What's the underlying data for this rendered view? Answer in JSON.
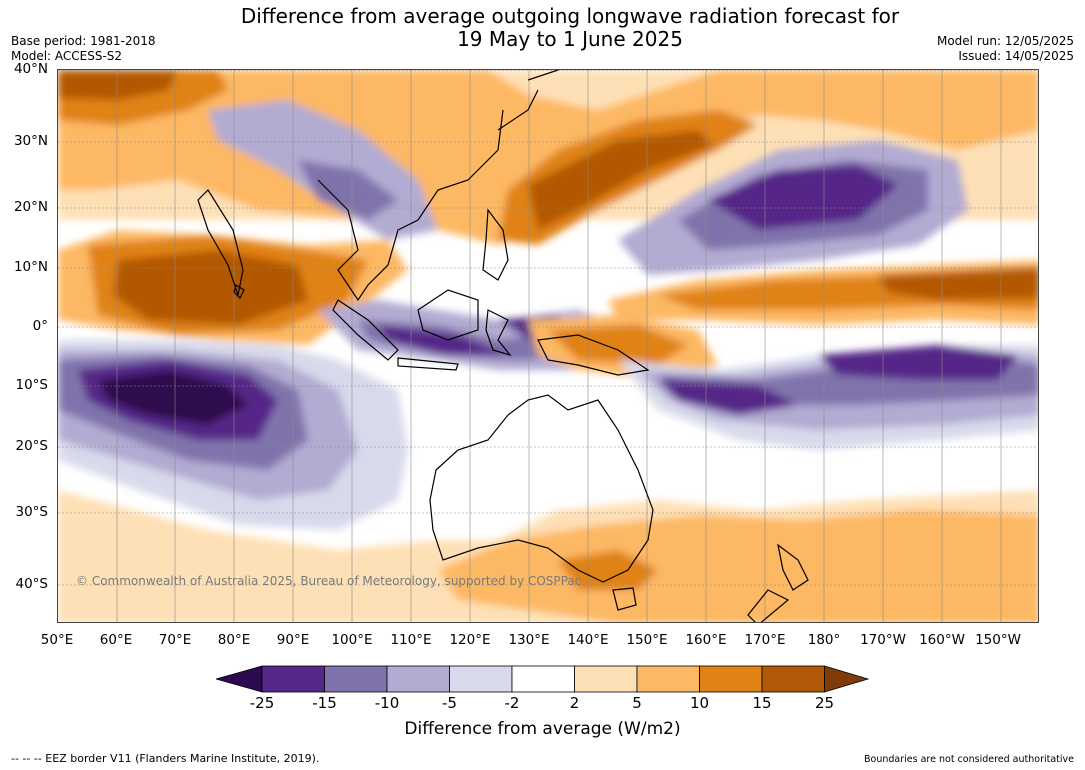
{
  "title": {
    "line1": "Difference from average outgoing longwave radiation forecast for",
    "line2": "19 May to 1 June 2025"
  },
  "meta_left": {
    "base_period": "Base period: 1981-2018",
    "model": "Model: ACCESS-S2"
  },
  "meta_right": {
    "model_run": "Model run: 12/05/2025",
    "issued": "Issued: 14/05/2025"
  },
  "map": {
    "lat_labels": [
      "40°N",
      "30°N",
      "20°N",
      "10°N",
      "0°",
      "10°S",
      "20°S",
      "30°S",
      "40°S"
    ],
    "lon_labels": [
      "50°E",
      "60°E",
      "70°E",
      "80°E",
      "90°E",
      "100°E",
      "110°E",
      "120°E",
      "130°E",
      "140°E",
      "150°E",
      "160°E",
      "170°E",
      "180°",
      "170°W",
      "160°W",
      "150°W"
    ],
    "copyright": "© Commonwealth of Australia 2025, Bureau of Meteorology, supported by COSPPac"
  },
  "colorbar": {
    "levels": [
      "-25",
      "-15",
      "-10",
      "-5",
      "-2",
      "2",
      "5",
      "10",
      "15",
      "25"
    ],
    "colors": [
      "#2d0a4e",
      "#542788",
      "#8073ac",
      "#b2abd2",
      "#d8daeb",
      "#ffffff",
      "#fee0b6",
      "#fdb863",
      "#e08214",
      "#b35806",
      "#7f3b08"
    ],
    "label": "Difference from average (W/m2)"
  },
  "footer": {
    "eez_note": "--  --  -- EEZ border V11 (Flanders Marine Institute, 2019).",
    "boundaries_note": "Boundaries are not considered authoritative"
  }
}
